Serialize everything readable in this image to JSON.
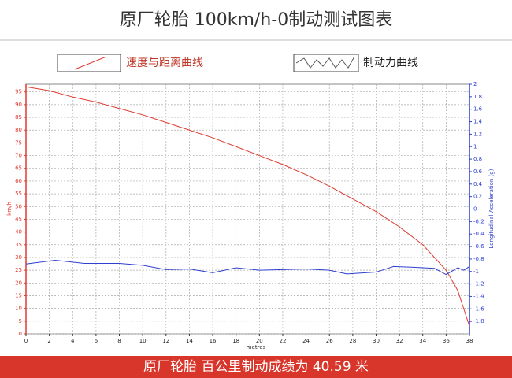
{
  "chart_data": {
    "type": "line",
    "title": "原厂轮胎 100km/h-0制动测试图表",
    "footer": "原厂轮胎 百公里制动成绩为 40.59 米",
    "x_label": "metres",
    "y_label": "km/h",
    "y2_label": "Longitudinal Acceleration (g)",
    "xlim": [
      0,
      38
    ],
    "xticks": [
      0,
      2,
      4,
      6,
      8,
      10,
      12,
      14,
      16,
      18,
      20,
      22,
      24,
      26,
      28,
      30,
      32,
      34,
      36,
      38
    ],
    "ylim": [
      0,
      98
    ],
    "yticks": [
      0,
      5,
      10,
      15,
      20,
      25,
      30,
      35,
      40,
      45,
      50,
      55,
      60,
      65,
      70,
      75,
      80,
      85,
      90,
      95
    ],
    "y2lim": [
      -2,
      2
    ],
    "y2ticks": [
      -1.8,
      -1.6,
      -1.4,
      -1.2,
      -1,
      -0.8,
      -0.6,
      -0.4,
      -0.2,
      0,
      0.2,
      0.4,
      0.6,
      0.8,
      1,
      1.2,
      1.4,
      1.6,
      1.8,
      2
    ],
    "grid": true,
    "series": [
      {
        "name": "速度与距离曲线",
        "color": "#e03a30",
        "x": [
          0,
          2,
          4,
          6,
          8,
          10,
          12,
          14,
          16,
          18,
          20,
          22,
          24,
          26,
          28,
          30,
          32,
          34,
          36,
          37,
          37.5,
          38
        ],
        "values": [
          97,
          95.5,
          93,
          91,
          88.5,
          86,
          83,
          80,
          77,
          73.5,
          70,
          66.5,
          62.5,
          58,
          53,
          48,
          42,
          35,
          25,
          17,
          10,
          3
        ]
      },
      {
        "name": "制动力曲线",
        "color": "#2f3fd0",
        "axis": "y2",
        "x": [
          0,
          2.5,
          5,
          8,
          10,
          12,
          14,
          16,
          18,
          20,
          22,
          24,
          26,
          27.5,
          30,
          31.5,
          33,
          35,
          36,
          37,
          37.5,
          38
        ],
        "values": [
          -0.88,
          -0.82,
          -0.87,
          -0.87,
          -0.9,
          -0.97,
          -0.96,
          -1.02,
          -0.94,
          -0.98,
          -0.97,
          -0.96,
          -0.98,
          -1.04,
          -1.01,
          -0.92,
          -0.93,
          -0.95,
          -1.05,
          -0.94,
          -0.98,
          -0.92
        ]
      }
    ]
  }
}
